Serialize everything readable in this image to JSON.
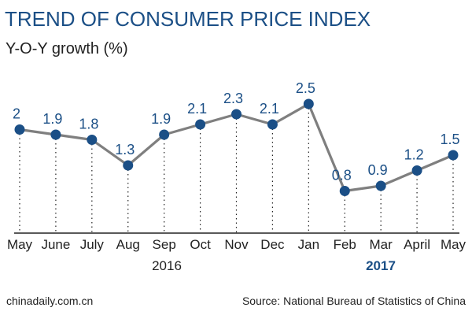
{
  "chart_data": {
    "type": "line",
    "title": "TREND OF CONSUMER PRICE INDEX",
    "ylabel": "Y-O-Y growth (%)",
    "categories": [
      "May",
      "June",
      "July",
      "Aug",
      "Sep",
      "Oct",
      "Nov",
      "Dec",
      "Jan",
      "Feb",
      "Mar",
      "April",
      "May"
    ],
    "values": [
      2,
      1.9,
      1.8,
      1.3,
      1.9,
      2.1,
      2.3,
      2.1,
      2.5,
      0.8,
      0.9,
      1.2,
      1.5
    ],
    "value_labels": [
      "2",
      "1.9",
      "1.8",
      "1.3",
      "1.9",
      "2.1",
      "2.3",
      "2.1",
      "2.5",
      "0.8",
      "0.9",
      "1.2",
      "1.5"
    ],
    "year_labels": [
      "2016",
      "2017"
    ],
    "grid": false,
    "colors": {
      "line": "#7f7f7f",
      "marker": "#1b4f86",
      "title": "#1b4f86"
    }
  },
  "footer": {
    "left": "chinadaily.com.cn",
    "right": "Source: National Bureau of Statistics of China"
  }
}
